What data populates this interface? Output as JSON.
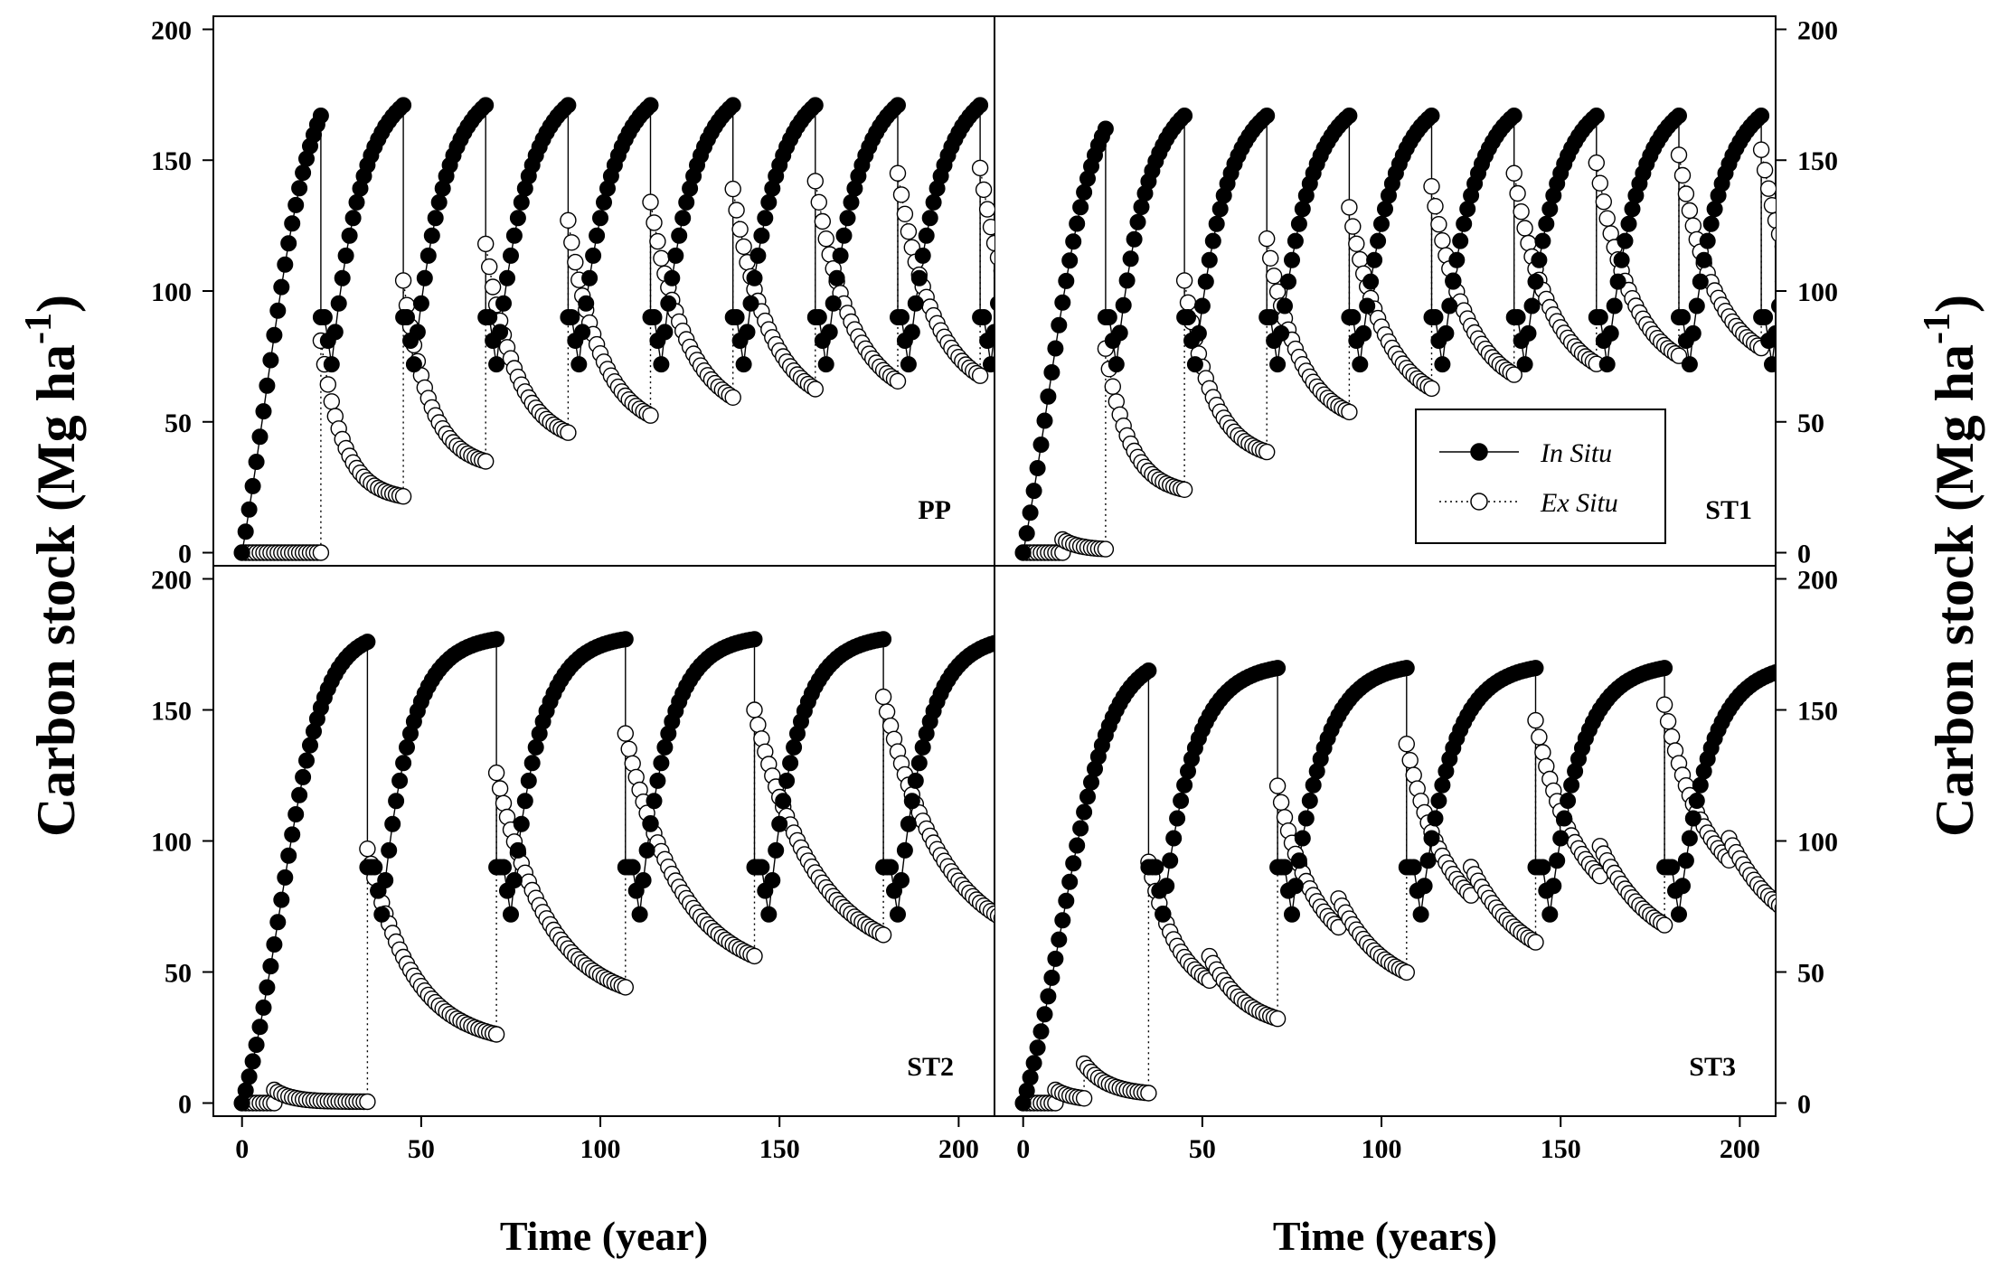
{
  "figure": {
    "ylabel_left": "Carbon stock (Mg ha",
    "ylabel_right": "Carbon stock (Mg ha",
    "ylabel_superscript": "-1",
    "ylabel_close": ")",
    "xlabel_left": "Time (year)",
    "xlabel_right": "Time (years)",
    "legend": {
      "in_situ": "In Situ",
      "ex_situ": "Ex Situ"
    },
    "colors": {
      "in_situ_fill": "#000000",
      "ex_situ_fill": "#ffffff",
      "stroke": "#000000"
    }
  },
  "chart_data": [
    {
      "type": "scatter",
      "panel": "PP",
      "label": "PP",
      "title": "",
      "xlabel": "Time (year)",
      "ylabel": "Carbon stock (Mg ha-1)",
      "xlim": [
        -8,
        210
      ],
      "ylim": [
        -5,
        205
      ],
      "xticks": [
        0,
        50,
        100,
        150,
        200
      ],
      "yticks": [
        0,
        50,
        100,
        150,
        200
      ],
      "in_situ": {
        "rotations": [
          {
            "start": 0,
            "len": 22,
            "peak": 167,
            "k": 0.15,
            "regen": 0,
            "rise": 0
          },
          {
            "start": 22,
            "len": 23,
            "peak": 171,
            "k": 0.12,
            "regen": 90,
            "rise": 1
          },
          {
            "start": 45,
            "len": 23,
            "peak": 171,
            "k": 0.12,
            "regen": 90,
            "rise": 1
          },
          {
            "start": 68,
            "len": 23,
            "peak": 171,
            "k": 0.12,
            "regen": 90,
            "rise": 1
          },
          {
            "start": 91,
            "len": 23,
            "peak": 171,
            "k": 0.12,
            "regen": 90,
            "rise": 1
          },
          {
            "start": 114,
            "len": 23,
            "peak": 171,
            "k": 0.12,
            "regen": 90,
            "rise": 1
          },
          {
            "start": 137,
            "len": 23,
            "peak": 171,
            "k": 0.12,
            "regen": 90,
            "rise": 1
          },
          {
            "start": 160,
            "len": 23,
            "peak": 171,
            "k": 0.12,
            "regen": 90,
            "rise": 1
          },
          {
            "start": 183,
            "len": 23,
            "peak": 171,
            "k": 0.12,
            "regen": 90,
            "rise": 1
          },
          {
            "start": 206,
            "len": 23,
            "peak": 171,
            "k": 0.12,
            "regen": 90,
            "rise": 1
          }
        ]
      },
      "ex_situ": {
        "segments": [
          {
            "start": 0,
            "len": 22,
            "v0": 0,
            "fl": 0,
            "k": 0.1
          },
          {
            "start": 22,
            "len": 23,
            "v0": 81,
            "fl": 20,
            "k": 0.16
          },
          {
            "start": 45,
            "len": 23,
            "v0": 104,
            "fl": 32,
            "k": 0.14
          },
          {
            "start": 68,
            "len": 23,
            "v0": 118,
            "fl": 41,
            "k": 0.12
          },
          {
            "start": 91,
            "len": 23,
            "v0": 127,
            "fl": 46,
            "k": 0.11
          },
          {
            "start": 114,
            "len": 23,
            "v0": 134,
            "fl": 51,
            "k": 0.1
          },
          {
            "start": 137,
            "len": 23,
            "v0": 139,
            "fl": 54,
            "k": 0.1
          },
          {
            "start": 160,
            "len": 23,
            "v0": 142,
            "fl": 57,
            "k": 0.1
          },
          {
            "start": 183,
            "len": 23,
            "v0": 145,
            "fl": 59,
            "k": 0.1
          },
          {
            "start": 206,
            "len": 23,
            "v0": 147,
            "fl": 60,
            "k": 0.1
          }
        ]
      }
    },
    {
      "type": "scatter",
      "panel": "ST1",
      "label": "ST1",
      "title": "",
      "xlabel": "Time (years)",
      "ylabel": "Carbon stock (Mg ha-1)",
      "xlim": [
        -8,
        210
      ],
      "ylim": [
        -5,
        205
      ],
      "xticks": [
        0,
        50,
        100,
        150,
        200
      ],
      "yticks": [
        0,
        50,
        100,
        150,
        200
      ],
      "in_situ": {
        "rotations": [
          {
            "start": 0,
            "len": 23,
            "peak": 162,
            "k": 0.15,
            "regen": 0,
            "rise": 0
          },
          {
            "start": 23,
            "len": 22,
            "peak": 167,
            "k": 0.12,
            "regen": 90,
            "rise": 1
          },
          {
            "start": 45,
            "len": 23,
            "peak": 167,
            "k": 0.12,
            "regen": 90,
            "rise": 1
          },
          {
            "start": 68,
            "len": 23,
            "peak": 167,
            "k": 0.12,
            "regen": 90,
            "rise": 1
          },
          {
            "start": 91,
            "len": 23,
            "peak": 167,
            "k": 0.12,
            "regen": 90,
            "rise": 1
          },
          {
            "start": 114,
            "len": 23,
            "peak": 167,
            "k": 0.12,
            "regen": 90,
            "rise": 1
          },
          {
            "start": 137,
            "len": 23,
            "peak": 167,
            "k": 0.12,
            "regen": 90,
            "rise": 1
          },
          {
            "start": 160,
            "len": 23,
            "peak": 167,
            "k": 0.12,
            "regen": 90,
            "rise": 1
          },
          {
            "start": 183,
            "len": 23,
            "peak": 167,
            "k": 0.12,
            "regen": 90,
            "rise": 1
          },
          {
            "start": 206,
            "len": 23,
            "peak": 167,
            "k": 0.12,
            "regen": 90,
            "rise": 1
          }
        ]
      },
      "ex_situ": {
        "segments": [
          {
            "start": 0,
            "len": 11,
            "v0": 0,
            "fl": 0,
            "k": 0.1
          },
          {
            "start": 11,
            "len": 12,
            "v0": 5,
            "fl": 1,
            "k": 0.2
          },
          {
            "start": 23,
            "len": 22,
            "v0": 78,
            "fl": 22,
            "k": 0.15
          },
          {
            "start": 45,
            "len": 23,
            "v0": 104,
            "fl": 35,
            "k": 0.13
          },
          {
            "start": 68,
            "len": 23,
            "v0": 120,
            "fl": 48,
            "k": 0.11
          },
          {
            "start": 91,
            "len": 23,
            "v0": 132,
            "fl": 55,
            "k": 0.1
          },
          {
            "start": 114,
            "len": 23,
            "v0": 140,
            "fl": 60,
            "k": 0.1
          },
          {
            "start": 137,
            "len": 23,
            "v0": 145,
            "fl": 64,
            "k": 0.1
          },
          {
            "start": 160,
            "len": 23,
            "v0": 149,
            "fl": 67,
            "k": 0.1
          },
          {
            "start": 183,
            "len": 23,
            "v0": 152,
            "fl": 70,
            "k": 0.1
          },
          {
            "start": 206,
            "len": 23,
            "v0": 154,
            "fl": 72,
            "k": 0.1
          }
        ]
      }
    },
    {
      "type": "scatter",
      "panel": "ST2",
      "label": "ST2",
      "title": "",
      "xlabel": "Time (year)",
      "ylabel": "Carbon stock (Mg ha-1)",
      "xlim": [
        -8,
        210
      ],
      "ylim": [
        -5,
        205
      ],
      "xticks": [
        0,
        50,
        100,
        150,
        200
      ],
      "yticks": [
        0,
        50,
        100,
        150,
        200
      ],
      "in_situ": {
        "rotations": [
          {
            "start": 0,
            "len": 35,
            "peak": 176,
            "k": 0.16,
            "regen": 0,
            "rise": 0
          },
          {
            "start": 35,
            "len": 36,
            "peak": 177,
            "k": 0.13,
            "regen": 90,
            "rise": 2
          },
          {
            "start": 71,
            "len": 36,
            "peak": 177,
            "k": 0.13,
            "regen": 90,
            "rise": 2
          },
          {
            "start": 107,
            "len": 36,
            "peak": 177,
            "k": 0.13,
            "regen": 90,
            "rise": 2
          },
          {
            "start": 143,
            "len": 36,
            "peak": 177,
            "k": 0.13,
            "regen": 90,
            "rise": 2
          },
          {
            "start": 179,
            "len": 36,
            "peak": 177,
            "k": 0.13,
            "regen": 90,
            "rise": 2
          }
        ]
      },
      "ex_situ": {
        "segments": [
          {
            "start": 0,
            "len": 9,
            "v0": 0,
            "fl": 0,
            "k": 0.1
          },
          {
            "start": 9,
            "len": 26,
            "v0": 5,
            "fl": 0.5,
            "k": 0.2
          },
          {
            "start": 35,
            "len": 36,
            "v0": 97,
            "fl": 22,
            "k": 0.08
          },
          {
            "start": 71,
            "len": 36,
            "v0": 126,
            "fl": 37,
            "k": 0.07
          },
          {
            "start": 107,
            "len": 36,
            "v0": 141,
            "fl": 47,
            "k": 0.065
          },
          {
            "start": 143,
            "len": 36,
            "v0": 150,
            "fl": 53,
            "k": 0.06
          },
          {
            "start": 179,
            "len": 36,
            "v0": 155,
            "fl": 57,
            "k": 0.06
          }
        ]
      }
    },
    {
      "type": "scatter",
      "panel": "ST3",
      "label": "ST3",
      "title": "",
      "xlabel": "Time (years)",
      "ylabel": "Carbon stock (Mg ha-1)",
      "xlim": [
        -8,
        210
      ],
      "ylim": [
        -5,
        205
      ],
      "xticks": [
        0,
        50,
        100,
        150,
        200
      ],
      "yticks": [
        0,
        50,
        100,
        150,
        200
      ],
      "in_situ": {
        "rotations": [
          {
            "start": 0,
            "len": 35,
            "peak": 165,
            "k": 0.14,
            "regen": 0,
            "rise": 0
          },
          {
            "start": 35,
            "len": 36,
            "peak": 166,
            "k": 0.12,
            "regen": 90,
            "rise": 2
          },
          {
            "start": 71,
            "len": 36,
            "peak": 166,
            "k": 0.12,
            "regen": 90,
            "rise": 2
          },
          {
            "start": 107,
            "len": 36,
            "peak": 166,
            "k": 0.12,
            "regen": 90,
            "rise": 2
          },
          {
            "start": 143,
            "len": 36,
            "peak": 166,
            "k": 0.12,
            "regen": 90,
            "rise": 2
          },
          {
            "start": 179,
            "len": 36,
            "peak": 166,
            "k": 0.12,
            "regen": 90,
            "rise": 2
          }
        ]
      },
      "ex_situ": {
        "segments": [
          {
            "start": 0,
            "len": 9,
            "v0": 0,
            "fl": 0,
            "k": 0.1
          },
          {
            "start": 9,
            "len": 8,
            "v0": 5,
            "fl": 1,
            "k": 0.2
          },
          {
            "start": 17,
            "len": 18,
            "v0": 15,
            "fl": 3,
            "k": 0.15
          },
          {
            "start": 35,
            "len": 17,
            "v0": 92,
            "fl": 40,
            "k": 0.12
          },
          {
            "start": 52,
            "len": 19,
            "v0": 56,
            "fl": 28,
            "k": 0.1
          },
          {
            "start": 71,
            "len": 17,
            "v0": 121,
            "fl": 55,
            "k": 0.1
          },
          {
            "start": 88,
            "len": 19,
            "v0": 78,
            "fl": 42,
            "k": 0.08
          },
          {
            "start": 107,
            "len": 18,
            "v0": 137,
            "fl": 65,
            "k": 0.09
          },
          {
            "start": 125,
            "len": 18,
            "v0": 90,
            "fl": 50,
            "k": 0.07
          },
          {
            "start": 143,
            "len": 18,
            "v0": 146,
            "fl": 72,
            "k": 0.09
          },
          {
            "start": 161,
            "len": 18,
            "v0": 98,
            "fl": 56,
            "k": 0.07
          },
          {
            "start": 179,
            "len": 18,
            "v0": 152,
            "fl": 78,
            "k": 0.09
          },
          {
            "start": 197,
            "len": 18,
            "v0": 101,
            "fl": 60,
            "k": 0.07
          }
        ]
      }
    }
  ]
}
